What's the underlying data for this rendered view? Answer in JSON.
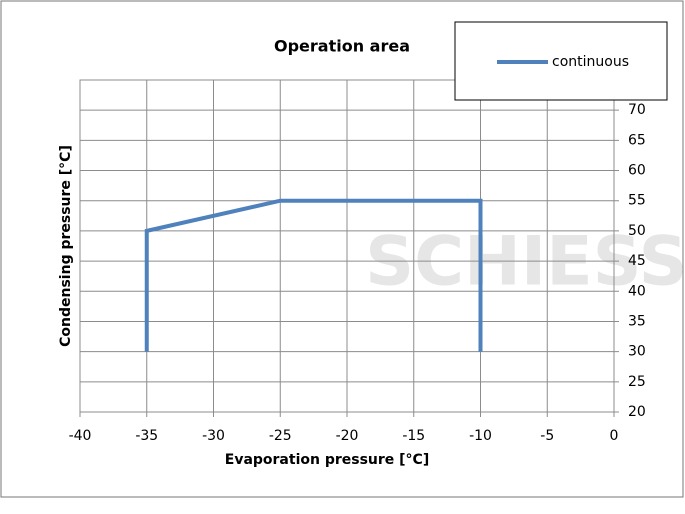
{
  "chart_data": {
    "type": "line",
    "title": "Operation area",
    "x_label": "Evaporation pressure [°C]",
    "y_label": "Condensing pressure [°C]",
    "watermark": "SCHIESSL",
    "x": [
      -35,
      -35,
      -25,
      -10,
      -10
    ],
    "series": [
      {
        "name": "continuous",
        "color": "#4f81bd",
        "values": [
          30,
          50,
          55,
          55,
          30
        ]
      }
    ],
    "xlim": [
      -40,
      0
    ],
    "xticks": [
      -40,
      -35,
      -30,
      -25,
      -20,
      -15,
      -10,
      -5,
      0
    ],
    "ylim": [
      20,
      75
    ],
    "yticks": [
      20,
      25,
      30,
      35,
      40,
      45,
      50,
      55,
      60,
      65,
      70
    ],
    "grid": true,
    "legend": "top-right"
  }
}
